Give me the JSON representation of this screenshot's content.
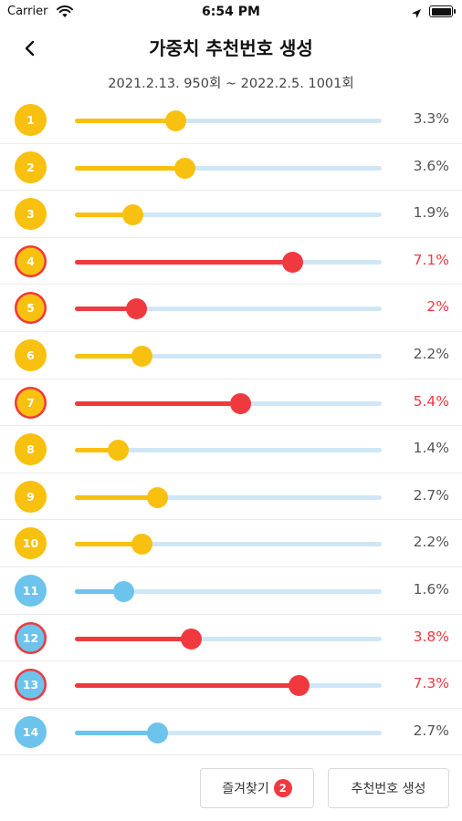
{
  "status_bar": {
    "carrier": "Carrier",
    "time": "6:54 PM",
    "icons": [
      "wifi-icon",
      "location-icon",
      "battery-icon"
    ]
  },
  "nav": {
    "back_icon": "chevron-left-icon",
    "title": "가중치 추천번호 생성"
  },
  "date_range": "2021.2.13. 950회 ~ 2022.2.5. 1001회",
  "colors": {
    "yellow": "#f8c00f",
    "blue": "#6cc3ec",
    "red": "#f0393f",
    "track": "#cfe6f7"
  },
  "slider_max_percent": 10,
  "rows": [
    {
      "number": "1",
      "ball_color": "yellow",
      "percent": 3.3,
      "percent_label": "3.3%",
      "highlight": false
    },
    {
      "number": "2",
      "ball_color": "yellow",
      "percent": 3.6,
      "percent_label": "3.6%",
      "highlight": false
    },
    {
      "number": "3",
      "ball_color": "yellow",
      "percent": 1.9,
      "percent_label": "1.9%",
      "highlight": false
    },
    {
      "number": "4",
      "ball_color": "yellow",
      "percent": 7.1,
      "percent_label": "7.1%",
      "highlight": true
    },
    {
      "number": "5",
      "ball_color": "yellow",
      "percent": 2,
      "percent_label": "2%",
      "highlight": true
    },
    {
      "number": "6",
      "ball_color": "yellow",
      "percent": 2.2,
      "percent_label": "2.2%",
      "highlight": false
    },
    {
      "number": "7",
      "ball_color": "yellow",
      "percent": 5.4,
      "percent_label": "5.4%",
      "highlight": true
    },
    {
      "number": "8",
      "ball_color": "yellow",
      "percent": 1.4,
      "percent_label": "1.4%",
      "highlight": false
    },
    {
      "number": "9",
      "ball_color": "yellow",
      "percent": 2.7,
      "percent_label": "2.7%",
      "highlight": false
    },
    {
      "number": "10",
      "ball_color": "yellow",
      "percent": 2.2,
      "percent_label": "2.2%",
      "highlight": false
    },
    {
      "number": "11",
      "ball_color": "blue",
      "percent": 1.6,
      "percent_label": "1.6%",
      "highlight": false
    },
    {
      "number": "12",
      "ball_color": "blue",
      "percent": 3.8,
      "percent_label": "3.8%",
      "highlight": true
    },
    {
      "number": "13",
      "ball_color": "blue",
      "percent": 7.3,
      "percent_label": "7.3%",
      "highlight": true
    },
    {
      "number": "14",
      "ball_color": "blue",
      "percent": 2.7,
      "percent_label": "2.7%",
      "highlight": false
    }
  ],
  "footer": {
    "favorites_label": "즐겨찾기",
    "favorites_count": "2",
    "generate_label": "추천번호 생성"
  }
}
